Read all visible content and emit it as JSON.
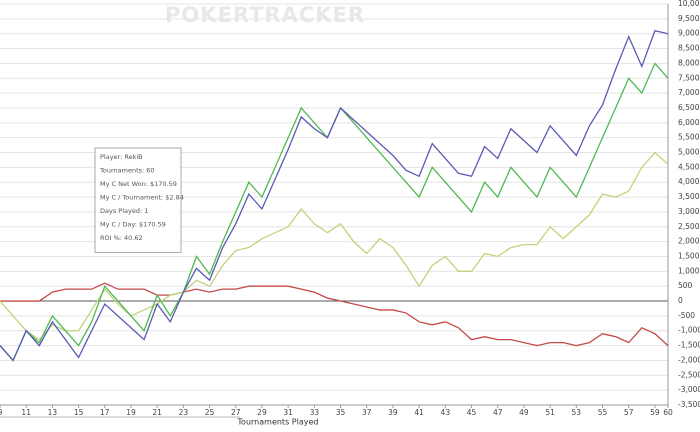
{
  "chart_data": {
    "type": "line",
    "watermark": "POKERTRACKER",
    "x_label": "Tournaments Played",
    "annotations": [
      "Player: RekiB",
      "Tournaments: 60",
      "My C Net Won: $170.59",
      "My C / Tournament: $2.84",
      "Days Played: 1",
      "My C / Day: $170.59",
      "ROI %: 40.62"
    ],
    "x": [
      9,
      10,
      11,
      12,
      13,
      14,
      15,
      16,
      17,
      18,
      19,
      20,
      21,
      22,
      23,
      24,
      25,
      26,
      27,
      28,
      29,
      30,
      31,
      32,
      33,
      34,
      35,
      36,
      37,
      38,
      39,
      40,
      41,
      42,
      43,
      44,
      45,
      46,
      47,
      48,
      49,
      50,
      51,
      52,
      53,
      54,
      55,
      56,
      57,
      58,
      59,
      60
    ],
    "xlim": [
      9,
      60
    ],
    "xticks": [
      9,
      11,
      13,
      15,
      17,
      19,
      21,
      23,
      25,
      27,
      29,
      31,
      33,
      35,
      37,
      39,
      41,
      43,
      45,
      47,
      49,
      51,
      53,
      55,
      57,
      59,
      60
    ],
    "ylim": [
      -3500,
      10000
    ],
    "yticks": [
      {
        "value": -3500,
        "label": "-3,500"
      },
      {
        "value": -3000,
        "label": "-3,000"
      },
      {
        "value": -2500,
        "label": "-2,500"
      },
      {
        "value": -2000,
        "label": "-2,000"
      },
      {
        "value": -1500,
        "label": "-1,500"
      },
      {
        "value": -1000,
        "label": "-1,000"
      },
      -500,
      0,
      500,
      {
        "value": 1000,
        "label": "1,000"
      },
      {
        "value": 1500,
        "label": "1,500"
      },
      {
        "value": 2000,
        "label": "2,000"
      },
      {
        "value": 2500,
        "label": "2,500"
      },
      {
        "value": 3000,
        "label": "3,000"
      },
      {
        "value": 3500,
        "label": "3,500"
      },
      {
        "value": 4000,
        "label": "4,000"
      },
      {
        "value": 4500,
        "label": "4,500"
      },
      {
        "value": 5000,
        "label": "5,000"
      },
      {
        "value": 5500,
        "label": "5,500"
      },
      {
        "value": 6000,
        "label": "6,000"
      },
      {
        "value": 6500,
        "label": "6,500"
      },
      {
        "value": 7000,
        "label": "7,000"
      },
      {
        "value": 7500,
        "label": "7,500"
      },
      {
        "value": 8000,
        "label": "8,000"
      },
      {
        "value": 8500,
        "label": "8,500"
      },
      {
        "value": 9000,
        "label": "9,000"
      },
      {
        "value": 9500,
        "label": "9,500"
      },
      {
        "value": 10000,
        "label": "10,000"
      }
    ],
    "grid": true,
    "series": [
      {
        "color": "#5a5ab4",
        "values": [
          -1500,
          -2000,
          -1000,
          -1500,
          -700,
          -1300,
          -1900,
          -1000,
          -100,
          -500,
          -900,
          -1300,
          -100,
          -700,
          300,
          1100,
          700,
          1800,
          2600,
          3600,
          3100,
          4100,
          5100,
          6200,
          5800,
          5500,
          6500,
          6100,
          5700,
          5300,
          4900,
          4400,
          4200,
          5300,
          4800,
          4300,
          4200,
          5200,
          4800,
          5800,
          5400,
          5000,
          5900,
          5400,
          4900,
          5900,
          6600,
          7800,
          8900,
          7900,
          9100,
          9000
        ]
      },
      {
        "color": "#52b852",
        "values": [
          -1500,
          -2000,
          -1000,
          -1400,
          -500,
          -1000,
          -1500,
          -700,
          500,
          0,
          -500,
          -1000,
          200,
          -500,
          300,
          1500,
          900,
          2000,
          3000,
          4000,
          3500,
          4500,
          5500,
          6500,
          6000,
          5500,
          6500,
          6000,
          5500,
          5000,
          4500,
          4000,
          3500,
          4500,
          4000,
          3500,
          3000,
          4000,
          3500,
          4500,
          4000,
          3500,
          4500,
          4000,
          3500,
          4500,
          5500,
          6500,
          7500,
          7000,
          8000,
          7500
        ]
      },
      {
        "color": "#bfd47a",
        "values": [
          0,
          -500,
          -1000,
          -1300,
          -800,
          -1000,
          -1000,
          -300,
          400,
          -100,
          -500,
          -300,
          -100,
          200,
          300,
          700,
          500,
          1200,
          1700,
          1800,
          2100,
          2300,
          2500,
          3100,
          2600,
          2300,
          2600,
          2000,
          1600,
          2100,
          1800,
          1200,
          500,
          1200,
          1500,
          1000,
          1000,
          1600,
          1500,
          1800,
          1900,
          1900,
          2500,
          2100,
          2500,
          2900,
          3600,
          3500,
          3700,
          4500,
          5000,
          4600
        ]
      },
      {
        "color": "#c44a4a",
        "values": [
          0,
          0,
          0,
          0,
          300,
          400,
          400,
          400,
          600,
          400,
          400,
          400,
          200,
          200,
          300,
          400,
          300,
          400,
          400,
          500,
          500,
          500,
          500,
          400,
          300,
          100,
          0,
          -100,
          -200,
          -300,
          -300,
          -400,
          -700,
          -800,
          -700,
          -900,
          -1300,
          -1200,
          -1300,
          -1300,
          -1400,
          -1500,
          -1400,
          -1400,
          -1500,
          -1400,
          -1100,
          -1200,
          -1400,
          -900,
          -1100,
          -1500
        ]
      }
    ]
  }
}
